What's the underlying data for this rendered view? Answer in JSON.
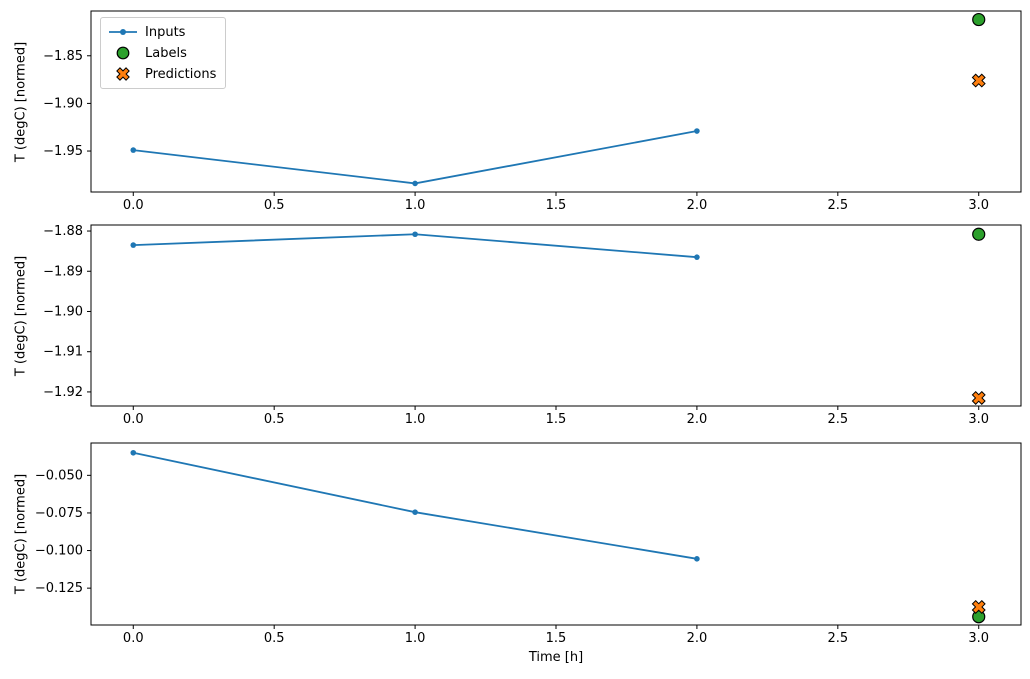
{
  "axis": {
    "xlabel": "Time [h]",
    "ylabel": "T (degC) [normed]"
  },
  "legend": {
    "items": [
      {
        "label": "Inputs",
        "marker": "line-dot",
        "color": "#1f77b4"
      },
      {
        "label": "Labels",
        "marker": "circle",
        "color": "#2ca02c"
      },
      {
        "label": "Predictions",
        "marker": "x-cross",
        "color": "#ff7f0e"
      }
    ]
  },
  "chart_data": [
    {
      "type": "line",
      "title": "",
      "xlabel": "",
      "ylabel": "T (degC) [normed]",
      "xlim": [
        -0.15,
        3.15
      ],
      "ylim": [
        -1.993,
        -1.803
      ],
      "xticks": [
        0.0,
        0.5,
        1.0,
        1.5,
        2.0,
        2.5,
        3.0
      ],
      "xtick_labels": [
        "0.0",
        "0.5",
        "1.0",
        "1.5",
        "2.0",
        "2.5",
        "3.0"
      ],
      "yticks": [
        -1.85,
        -1.9,
        -1.95
      ],
      "ytick_labels": [
        "−1.85",
        "−1.90",
        "−1.95"
      ],
      "grid": false,
      "legend_visible": true,
      "legend_position": "upper left",
      "series": [
        {
          "name": "Inputs",
          "kind": "line",
          "color": "#1f77b4",
          "x": [
            0,
            1,
            2
          ],
          "y": [
            -1.949,
            -1.984,
            -1.929
          ]
        },
        {
          "name": "Labels",
          "kind": "circle",
          "color": "#2ca02c",
          "edge": "#000000",
          "x": [
            3
          ],
          "y": [
            -1.812
          ]
        },
        {
          "name": "Predictions",
          "kind": "x",
          "color": "#ff7f0e",
          "edge": "#000000",
          "x": [
            3
          ],
          "y": [
            -1.876
          ]
        }
      ]
    },
    {
      "type": "line",
      "title": "",
      "xlabel": "",
      "ylabel": "T (degC) [normed]",
      "xlim": [
        -0.15,
        3.15
      ],
      "ylim": [
        -1.9235,
        -1.8785
      ],
      "xticks": [
        0.0,
        0.5,
        1.0,
        1.5,
        2.0,
        2.5,
        3.0
      ],
      "xtick_labels": [
        "0.0",
        "0.5",
        "1.0",
        "1.5",
        "2.0",
        "2.5",
        "3.0"
      ],
      "yticks": [
        -1.88,
        -1.89,
        -1.9,
        -1.91,
        -1.92
      ],
      "ytick_labels": [
        "−1.88",
        "−1.89",
        "−1.90",
        "−1.91",
        "−1.92"
      ],
      "grid": false,
      "legend_visible": false,
      "legend_position": "",
      "series": [
        {
          "name": "Inputs",
          "kind": "line",
          "color": "#1f77b4",
          "x": [
            0,
            1,
            2
          ],
          "y": [
            -1.8835,
            -1.8808,
            -1.8865
          ]
        },
        {
          "name": "Labels",
          "kind": "circle",
          "color": "#2ca02c",
          "edge": "#000000",
          "x": [
            3
          ],
          "y": [
            -1.8808
          ]
        },
        {
          "name": "Predictions",
          "kind": "x",
          "color": "#ff7f0e",
          "edge": "#000000",
          "x": [
            3
          ],
          "y": [
            -1.9215
          ]
        }
      ]
    },
    {
      "type": "line",
      "title": "",
      "xlabel": "Time [h]",
      "ylabel": "T (degC) [normed]",
      "xlim": [
        -0.15,
        3.15
      ],
      "ylim": [
        -0.1495,
        -0.0285
      ],
      "xticks": [
        0.0,
        0.5,
        1.0,
        1.5,
        2.0,
        2.5,
        3.0
      ],
      "xtick_labels": [
        "0.0",
        "0.5",
        "1.0",
        "1.5",
        "2.0",
        "2.5",
        "3.0"
      ],
      "yticks": [
        -0.05,
        -0.075,
        -0.1,
        -0.125
      ],
      "ytick_labels": [
        "−0.050",
        "−0.075",
        "−0.100",
        "−0.125"
      ],
      "grid": false,
      "legend_visible": false,
      "legend_position": "",
      "series": [
        {
          "name": "Inputs",
          "kind": "line",
          "color": "#1f77b4",
          "x": [
            0,
            1,
            2
          ],
          "y": [
            -0.035,
            -0.0745,
            -0.1055
          ]
        },
        {
          "name": "Labels",
          "kind": "circle",
          "color": "#2ca02c",
          "edge": "#000000",
          "x": [
            3
          ],
          "y": [
            -0.144
          ]
        },
        {
          "name": "Predictions",
          "kind": "x",
          "color": "#ff7f0e",
          "edge": "#000000",
          "x": [
            3
          ],
          "y": [
            -0.1375
          ]
        }
      ]
    }
  ]
}
